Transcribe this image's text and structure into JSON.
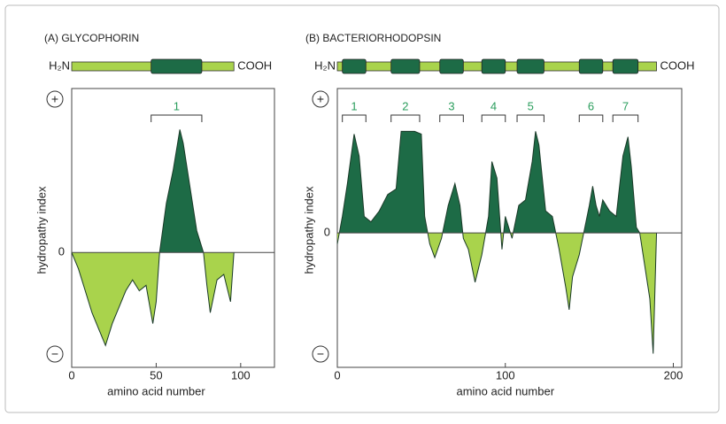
{
  "chart_data": [
    {
      "type": "area",
      "title": "(A)  GLYCOPHORIN",
      "n_terminus": "H₂N",
      "c_terminus": "COOH",
      "helices": [
        [
          47,
          77
        ]
      ],
      "helix_labels": [
        "1"
      ],
      "ylabel": "hydropathy index",
      "xlabel": "amino acid number",
      "plus_label": "+",
      "minus_label": "−",
      "x": [
        0,
        4,
        8,
        12,
        16,
        20,
        24,
        28,
        32,
        36,
        40,
        44,
        48,
        50,
        52,
        56,
        60,
        64,
        66,
        70,
        74,
        78,
        80,
        82,
        86,
        90,
        94,
        96
      ],
      "values": [
        0,
        -0.3,
        -0.7,
        -1.1,
        -1.4,
        -1.7,
        -1.3,
        -1.0,
        -0.7,
        -0.5,
        -0.7,
        -0.6,
        -1.3,
        -0.9,
        0,
        0.9,
        1.5,
        2.25,
        2.0,
        1.2,
        0.4,
        0,
        -0.6,
        -1.1,
        -0.5,
        -0.4,
        -0.9,
        0
      ],
      "xlim": [
        0,
        120
      ],
      "ylim": [
        -2.1,
        3
      ],
      "xticks": [
        0,
        50,
        100
      ],
      "yticks": [
        0
      ],
      "positive_color": "#1d6b46",
      "negative_color": "#a9d34c"
    },
    {
      "type": "area",
      "title": "(B)  BACTERIORHODOPSIN",
      "n_terminus": "H₂N",
      "c_terminus": "COOH",
      "helices": [
        [
          3,
          17
        ],
        [
          32,
          49
        ],
        [
          61,
          75
        ],
        [
          86,
          100
        ],
        [
          107,
          123
        ],
        [
          144,
          158
        ],
        [
          164,
          179
        ]
      ],
      "helix_labels": [
        "1",
        "2",
        "3",
        "4",
        "5",
        "6",
        "7"
      ],
      "ylabel": "hydropathy index",
      "xlabel": "amino acid number",
      "plus_label": "+",
      "minus_label": "−",
      "x": [
        0,
        3,
        6,
        10,
        13,
        16,
        20,
        25,
        30,
        35,
        38,
        42,
        46,
        50,
        52,
        55,
        58,
        62,
        66,
        70,
        73,
        75,
        78,
        82,
        86,
        90,
        92,
        95,
        98,
        100,
        104,
        108,
        112,
        116,
        118,
        120,
        124,
        128,
        132,
        136,
        138,
        140,
        144,
        148,
        150,
        152,
        154,
        156,
        158,
        162,
        166,
        170,
        173,
        175,
        178,
        180,
        182,
        186,
        188,
        190
      ],
      "values": [
        -0.2,
        0.3,
        0.9,
        1.8,
        1.4,
        0.3,
        0.2,
        0.4,
        0.7,
        0.8,
        1.85,
        1.85,
        1.85,
        1.8,
        0.3,
        -0.2,
        -0.45,
        -0.1,
        0.5,
        0.9,
        0.5,
        -0.1,
        -0.3,
        -0.9,
        -0.4,
        0.3,
        1.3,
        1.0,
        -0.3,
        0.3,
        -0.1,
        0.5,
        0.6,
        1.3,
        1.85,
        1.6,
        0.4,
        0.3,
        -0.3,
        -1.0,
        -1.4,
        -0.8,
        -0.4,
        0.2,
        0.5,
        0.85,
        0.5,
        0.3,
        0.6,
        0.4,
        0.3,
        1.4,
        1.75,
        1.2,
        0.1,
        0,
        -0.4,
        -1.2,
        -2.2,
        0
      ],
      "xlim": [
        0,
        205
      ],
      "ylim": [
        -2.45,
        2.63
      ],
      "xticks": [
        0,
        100,
        200
      ],
      "yticks": [
        0
      ],
      "positive_color": "#1d6b46",
      "negative_color": "#a9d34c"
    }
  ]
}
